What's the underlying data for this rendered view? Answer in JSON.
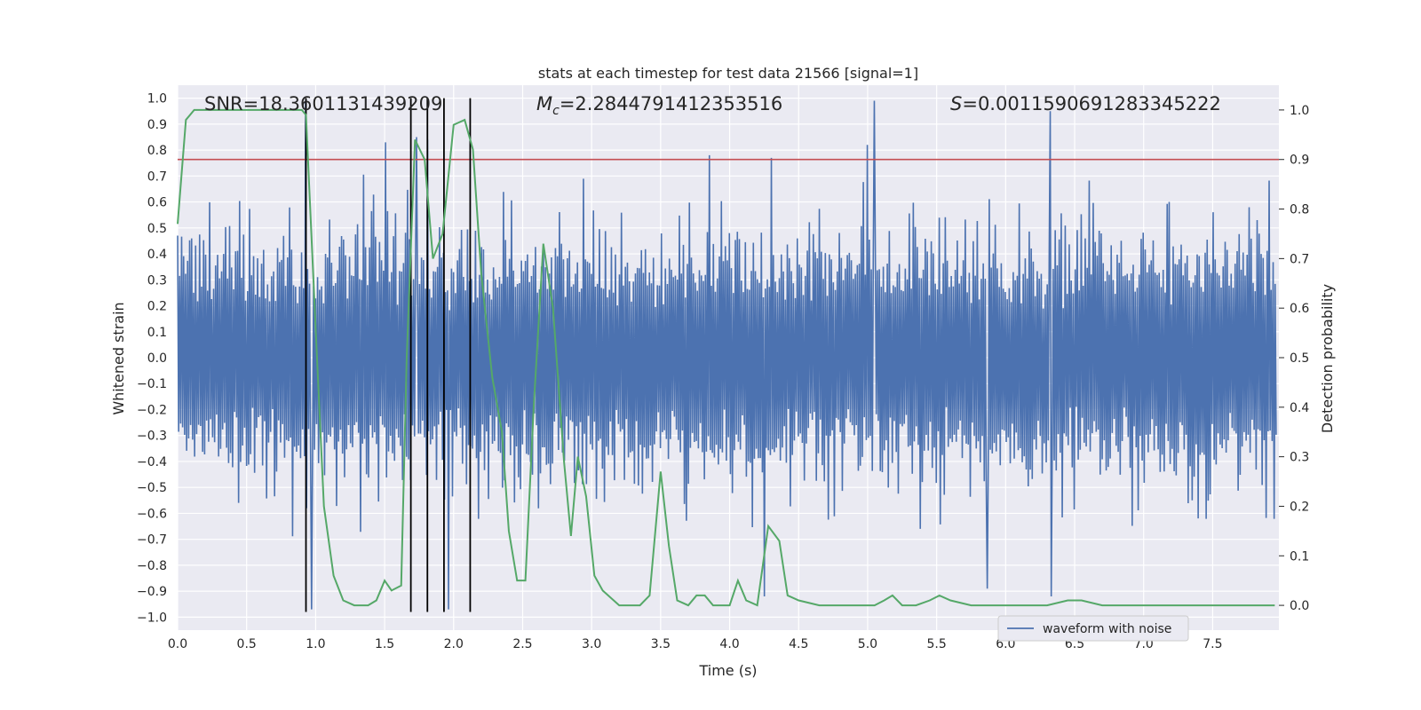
{
  "chart_data": {
    "type": "line",
    "title": "stats at each timestep for test data 21566 [signal=1]",
    "xlabel": "Time (s)",
    "ylabel": "Whitened strain",
    "ylabel_right": "Detection probability",
    "xlim": [
      0.0,
      7.98
    ],
    "ylim": [
      -1.05,
      1.05
    ],
    "ylim_right": [
      -0.05,
      1.05
    ],
    "x_ticks": [
      "0.0",
      "0.5",
      "1.0",
      "1.5",
      "2.0",
      "2.5",
      "3.0",
      "3.5",
      "4.0",
      "4.5",
      "5.0",
      "5.5",
      "6.0",
      "6.5",
      "7.0",
      "7.5"
    ],
    "x_tick_values": [
      0.0,
      0.5,
      1.0,
      1.5,
      2.0,
      2.5,
      3.0,
      3.5,
      4.0,
      4.5,
      5.0,
      5.5,
      6.0,
      6.5,
      7.0,
      7.5
    ],
    "y_ticks": [
      "1.0",
      "0.9",
      "0.8",
      "0.7",
      "0.6",
      "0.5",
      "0.4",
      "0.3",
      "0.2",
      "0.1",
      "0.0",
      "−0.1",
      "−0.2",
      "−0.3",
      "−0.4",
      "−0.5",
      "−0.6",
      "−0.7",
      "−0.8",
      "−0.9",
      "−1.0"
    ],
    "y_tick_values": [
      1.0,
      0.9,
      0.8,
      0.7,
      0.6,
      0.5,
      0.4,
      0.3,
      0.2,
      0.1,
      0.0,
      -0.1,
      -0.2,
      -0.3,
      -0.4,
      -0.5,
      -0.6,
      -0.7,
      -0.8,
      -0.9,
      -1.0
    ],
    "y2_ticks": [
      "1.0",
      "0.9",
      "0.8",
      "0.7",
      "0.6",
      "0.5",
      "0.4",
      "0.3",
      "0.2",
      "0.1",
      "0.0"
    ],
    "y2_tick_values": [
      1.0,
      0.9,
      0.8,
      0.7,
      0.6,
      0.5,
      0.4,
      0.3,
      0.2,
      0.1,
      0.0
    ],
    "annotations": {
      "snr": "SNR=18.3601131439209",
      "mc_symbol": "M",
      "mc_sub": "c",
      "mc_value": "=2.2844791412353516",
      "s_symbol": "S",
      "s_value": "=0.0011590691283345222"
    },
    "legend": {
      "label": "waveform with noise",
      "position": "lower-right"
    },
    "threshold": {
      "value": 0.9,
      "axis": "right",
      "color": "#c44e52"
    },
    "vertical_lines": [
      0.93,
      1.69,
      1.81,
      1.93,
      2.12
    ],
    "vertical_lines_ylim": [
      -0.98,
      1.0
    ],
    "series": [
      {
        "name": "waveform with noise",
        "axis": "left",
        "color": "#4c72b0",
        "n_samples": 1100,
        "seed": 21566,
        "spikes": [
          {
            "x": 0.93,
            "value": 0.99
          },
          {
            "x": 0.97,
            "value": -0.97
          },
          {
            "x": 1.51,
            "value": 0.83
          },
          {
            "x": 1.73,
            "value": 0.85
          },
          {
            "x": 1.81,
            "value": 0.84
          },
          {
            "x": 1.96,
            "value": -0.97
          },
          {
            "x": 3.85,
            "value": 0.78
          },
          {
            "x": 4.3,
            "value": 0.77
          },
          {
            "x": 5.05,
            "value": 0.99
          },
          {
            "x": 5.0,
            "value": 0.82
          },
          {
            "x": 5.87,
            "value": -0.89
          },
          {
            "x": 6.32,
            "value": 0.95
          },
          {
            "x": 6.33,
            "value": -0.92
          },
          {
            "x": 4.25,
            "value": -0.92
          }
        ]
      },
      {
        "name": "detection probability",
        "axis": "right",
        "color": "#55a868",
        "points": [
          [
            0.0,
            0.77
          ],
          [
            0.06,
            0.98
          ],
          [
            0.12,
            1.0
          ],
          [
            0.5,
            1.0
          ],
          [
            0.9,
            1.0
          ],
          [
            0.93,
            0.99
          ],
          [
            1.0,
            0.56
          ],
          [
            1.06,
            0.2
          ],
          [
            1.13,
            0.06
          ],
          [
            1.2,
            0.01
          ],
          [
            1.28,
            0.0
          ],
          [
            1.38,
            0.0
          ],
          [
            1.44,
            0.01
          ],
          [
            1.5,
            0.05
          ],
          [
            1.55,
            0.03
          ],
          [
            1.62,
            0.04
          ],
          [
            1.66,
            0.5
          ],
          [
            1.72,
            0.94
          ],
          [
            1.79,
            0.9
          ],
          [
            1.85,
            0.7
          ],
          [
            1.92,
            0.75
          ],
          [
            2.0,
            0.97
          ],
          [
            2.08,
            0.98
          ],
          [
            2.14,
            0.92
          ],
          [
            2.2,
            0.67
          ],
          [
            2.28,
            0.46
          ],
          [
            2.35,
            0.35
          ],
          [
            2.4,
            0.15
          ],
          [
            2.46,
            0.05
          ],
          [
            2.52,
            0.05
          ],
          [
            2.58,
            0.4
          ],
          [
            2.65,
            0.73
          ],
          [
            2.72,
            0.6
          ],
          [
            2.8,
            0.29
          ],
          [
            2.85,
            0.14
          ],
          [
            2.9,
            0.3
          ],
          [
            2.96,
            0.22
          ],
          [
            3.02,
            0.06
          ],
          [
            3.08,
            0.03
          ],
          [
            3.2,
            0.0
          ],
          [
            3.35,
            0.0
          ],
          [
            3.42,
            0.02
          ],
          [
            3.5,
            0.27
          ],
          [
            3.56,
            0.12
          ],
          [
            3.62,
            0.01
          ],
          [
            3.7,
            0.0
          ],
          [
            3.76,
            0.02
          ],
          [
            3.82,
            0.02
          ],
          [
            3.88,
            0.0
          ],
          [
            3.95,
            0.0
          ],
          [
            4.0,
            0.0
          ],
          [
            4.06,
            0.05
          ],
          [
            4.12,
            0.01
          ],
          [
            4.2,
            0.0
          ],
          [
            4.28,
            0.16
          ],
          [
            4.36,
            0.13
          ],
          [
            4.42,
            0.02
          ],
          [
            4.5,
            0.01
          ],
          [
            4.65,
            0.0
          ],
          [
            4.9,
            0.0
          ],
          [
            5.05,
            0.0
          ],
          [
            5.12,
            0.01
          ],
          [
            5.18,
            0.02
          ],
          [
            5.25,
            0.0
          ],
          [
            5.35,
            0.0
          ],
          [
            5.45,
            0.01
          ],
          [
            5.52,
            0.02
          ],
          [
            5.6,
            0.01
          ],
          [
            5.75,
            0.0
          ],
          [
            6.0,
            0.0
          ],
          [
            6.3,
            0.0
          ],
          [
            6.45,
            0.01
          ],
          [
            6.55,
            0.01
          ],
          [
            6.7,
            0.0
          ],
          [
            7.0,
            0.0
          ],
          [
            7.5,
            0.0
          ],
          [
            7.95,
            0.0
          ]
        ]
      }
    ]
  }
}
